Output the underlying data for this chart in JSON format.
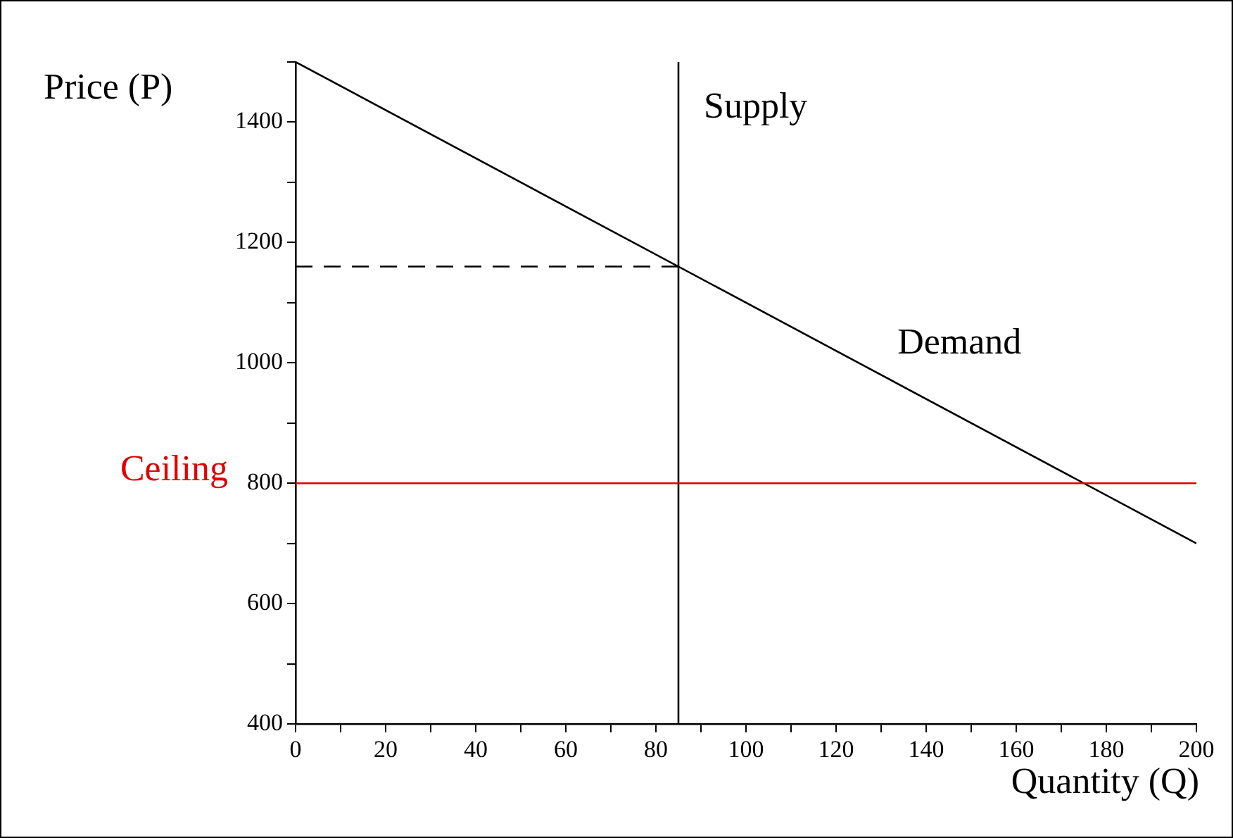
{
  "chart_data": {
    "type": "line",
    "xlabel": "Quantity (Q)",
    "ylabel": "Price (P)",
    "xlim": [
      0,
      200
    ],
    "ylim": [
      400,
      1500
    ],
    "xticks": [
      0,
      {
        "value": 10,
        "label": null
      },
      20,
      {
        "value": 30,
        "label": null
      },
      40,
      {
        "value": 50,
        "label": null
      },
      60,
      {
        "value": 70,
        "label": null
      },
      80,
      {
        "value": 90,
        "label": null
      },
      100,
      {
        "value": 110,
        "label": null
      },
      120,
      {
        "value": 130,
        "label": null
      },
      140,
      {
        "value": 150,
        "label": null
      },
      160,
      {
        "value": 170,
        "label": null
      },
      180,
      {
        "value": 190,
        "label": null
      },
      200
    ],
    "yticks": [
      400,
      {
        "value": 500,
        "label": null
      },
      600,
      {
        "value": 700,
        "label": null
      },
      800,
      {
        "value": 900,
        "label": null
      },
      1000,
      {
        "value": 1100,
        "label": null
      },
      1200,
      {
        "value": 1300,
        "label": null
      },
      1400,
      {
        "value": 1500,
        "label": null
      }
    ],
    "grid": false,
    "legend": false,
    "marker": "none",
    "series": [
      {
        "name": "Demand",
        "color": "#000000",
        "x": [
          0,
          200
        ],
        "values": [
          1500,
          700
        ]
      },
      {
        "name": "Supply",
        "color": "#000000",
        "x": [
          85,
          85
        ],
        "values": [
          400,
          1500
        ]
      },
      {
        "color": "#000000",
        "line_style": "dashed",
        "x": [
          0,
          85
        ],
        "values": [
          1160,
          1160
        ]
      }
    ],
    "ref_lines": [
      {
        "axis": "y",
        "value": 800,
        "label": "Ceiling",
        "color": "#e00000"
      }
    ]
  }
}
